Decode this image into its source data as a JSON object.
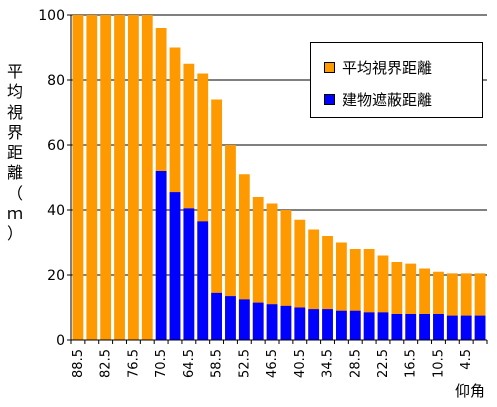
{
  "chart_data": {
    "type": "bar",
    "stacking": "overlay",
    "categories": [
      "88.5",
      "85.5",
      "82.5",
      "79.5",
      "76.5",
      "73.5",
      "70.5",
      "67.5",
      "64.5",
      "61.5",
      "58.5",
      "55.5",
      "52.5",
      "49.5",
      "46.5",
      "43.5",
      "40.5",
      "37.5",
      "34.5",
      "31.5",
      "28.5",
      "25.5",
      "22.5",
      "19.5",
      "16.5",
      "13.5",
      "10.5",
      "7.5",
      "4.5",
      "1.5"
    ],
    "x_tick_labels": [
      "88.5",
      "82.5",
      "76.5",
      "70.5",
      "64.5",
      "58.5",
      "52.5",
      "46.5",
      "40.5",
      "34.5",
      "28.5",
      "22.5",
      "16.5",
      "10.5",
      "4.5"
    ],
    "series": [
      {
        "name": "平均視界距離",
        "color": "#ff9900",
        "values": [
          100,
          100,
          100,
          100,
          100,
          100,
          96,
          90,
          85,
          82,
          74,
          60,
          51,
          44,
          42,
          40,
          37,
          34,
          32,
          30,
          28,
          28,
          26,
          24,
          23.5,
          22,
          21,
          20.5,
          20.5,
          20.5
        ]
      },
      {
        "name": "建物遮蔽距離",
        "color": "#0000ff",
        "values": [
          0,
          0,
          0,
          0,
          0,
          0,
          52,
          45.5,
          40.5,
          36.5,
          14.5,
          13.5,
          12.5,
          11.5,
          11,
          10.5,
          10,
          9.5,
          9.5,
          9,
          9,
          8.5,
          8.5,
          8,
          8,
          8,
          8,
          7.5,
          7.5,
          7.5
        ]
      }
    ],
    "ylim": [
      0,
      100
    ],
    "yticks": [
      0,
      20,
      40,
      60,
      80,
      100
    ],
    "ylabel": "平均視界距離（ｍ）",
    "ylabel_chars": [
      "平",
      "均",
      "視",
      "界",
      "距",
      "離",
      "（",
      "ｍ",
      "）"
    ],
    "xlabel": "仰角",
    "grid": true,
    "legend_position": "top-right"
  }
}
